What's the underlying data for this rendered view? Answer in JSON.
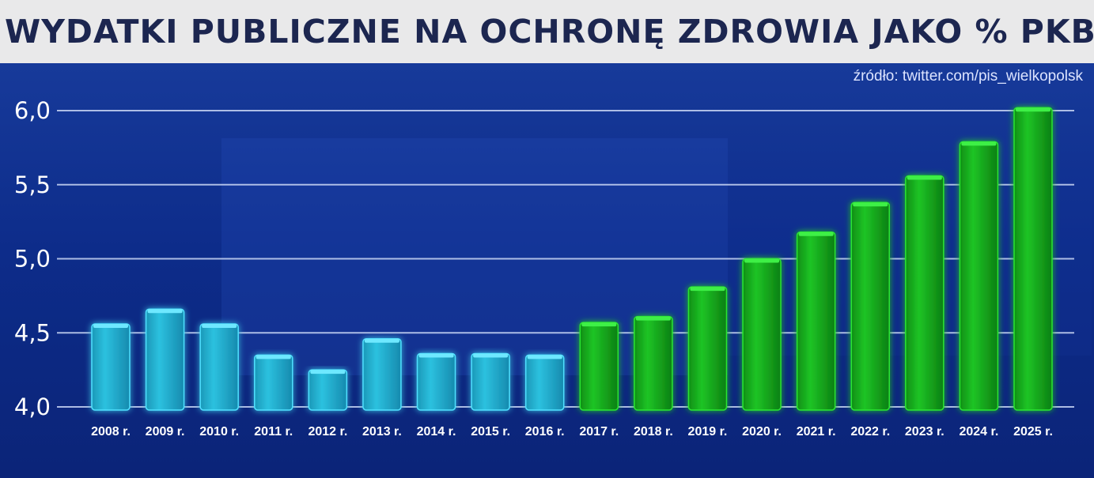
{
  "title": "WYDATKI PUBLICZNE NA OCHRONĘ ZDROWIA JAKO % PKB",
  "source": "źródło: twitter.com/pis_wielkopolsk",
  "colors": {
    "title_text": "#1c2650",
    "background": "#0d2c8a",
    "bar_cyan": "#1fa9c9",
    "bar_green": "#13a81c"
  },
  "chart_data": {
    "type": "bar",
    "categories": [
      "2008 r.",
      "2009 r.",
      "2010 r.",
      "2011 r.",
      "2012 r.",
      "2013 r.",
      "2014 r.",
      "2015 r.",
      "2016 r.",
      "2017 r.",
      "2018 r.",
      "2019 r.",
      "2020 r.",
      "2021 r.",
      "2022 r.",
      "2023 r.",
      "2024 r.",
      "2025 r."
    ],
    "values": [
      4.56,
      4.66,
      4.56,
      4.35,
      4.25,
      4.46,
      4.36,
      4.36,
      4.35,
      4.57,
      4.61,
      4.81,
      5.0,
      5.18,
      5.38,
      5.56,
      5.79,
      6.02
    ],
    "bar_colors": [
      "cyan",
      "cyan",
      "cyan",
      "cyan",
      "cyan",
      "cyan",
      "cyan",
      "cyan",
      "cyan",
      "green",
      "green",
      "green",
      "green",
      "green",
      "green",
      "green",
      "green",
      "green"
    ],
    "yticks": [
      "4,0",
      "4,5",
      "5,0",
      "5,5",
      "6,0"
    ],
    "ytick_values": [
      4.0,
      4.5,
      5.0,
      5.5,
      6.0
    ],
    "ylim": [
      4.0,
      6.0
    ],
    "title": "WYDATKI PUBLICZNE NA OCHRONĘ ZDROWIA JAKO % PKB",
    "xlabel": "",
    "ylabel": "",
    "grid": true
  }
}
